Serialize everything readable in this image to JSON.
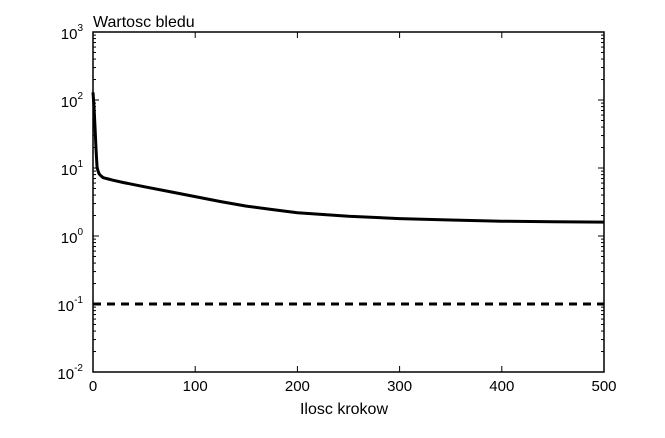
{
  "chart_data": {
    "type": "line",
    "title": "Wartosc bledu",
    "xlabel": "Ilosc krokow",
    "ylabel": "",
    "xlim": [
      0,
      500
    ],
    "ylim": [
      0.01,
      1000
    ],
    "yscale": "log",
    "x_ticks": [
      0,
      100,
      200,
      300,
      400,
      500
    ],
    "y_ticks": [
      {
        "base": "10",
        "exp": "-2",
        "value": 0.01
      },
      {
        "base": "10",
        "exp": "-1",
        "value": 0.1
      },
      {
        "base": "10",
        "exp": "0",
        "value": 1
      },
      {
        "base": "10",
        "exp": "1",
        "value": 10
      },
      {
        "base": "10",
        "exp": "2",
        "value": 100
      },
      {
        "base": "10",
        "exp": "3",
        "value": 1000
      }
    ],
    "grid": false,
    "series": [
      {
        "style": "solid",
        "color": "#000000",
        "x": [
          0,
          1,
          2,
          3,
          4,
          5,
          6,
          8,
          10,
          15,
          20,
          30,
          50,
          75,
          100,
          125,
          150,
          175,
          200,
          250,
          300,
          350,
          400,
          450,
          500
        ],
        "y": [
          130,
          80,
          40,
          18,
          10,
          9,
          8.2,
          7.6,
          7.2,
          6.9,
          6.6,
          6.1,
          5.3,
          4.5,
          3.8,
          3.2,
          2.75,
          2.45,
          2.2,
          1.95,
          1.8,
          1.72,
          1.65,
          1.62,
          1.6
        ]
      },
      {
        "style": "dashed",
        "color": "#000000",
        "x": [
          0,
          500
        ],
        "y": [
          0.1,
          0.1
        ]
      }
    ]
  }
}
